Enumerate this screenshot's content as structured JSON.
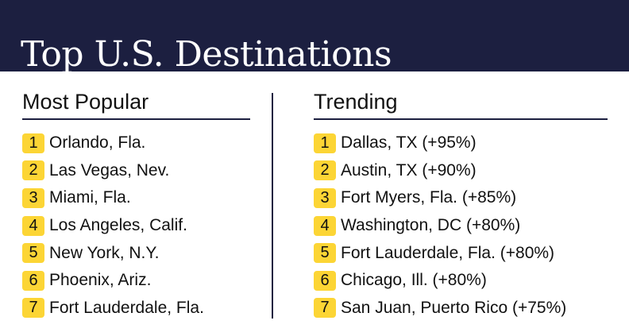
{
  "title": "Top U.S. Destinations",
  "popular": {
    "heading": "Most Popular",
    "items": [
      {
        "rank": "1",
        "name": "Orlando, Fla."
      },
      {
        "rank": "2",
        "name": "Las Vegas, Nev."
      },
      {
        "rank": "3",
        "name": "Miami, Fla."
      },
      {
        "rank": "4",
        "name": "Los Angeles, Calif."
      },
      {
        "rank": "5",
        "name": "New York, N.Y."
      },
      {
        "rank": "6",
        "name": "Phoenix, Ariz."
      },
      {
        "rank": "7",
        "name": "Fort Lauderdale, Fla."
      }
    ]
  },
  "trending": {
    "heading": "Trending",
    "items": [
      {
        "rank": "1",
        "name": "Dallas, TX (+95%)"
      },
      {
        "rank": "2",
        "name": "Austin, TX (+90%)"
      },
      {
        "rank": "3",
        "name": "Fort Myers, Fla. (+85%)"
      },
      {
        "rank": "4",
        "name": "Washington, DC (+80%)"
      },
      {
        "rank": "5",
        "name": "Fort Lauderdale, Fla. (+80%)"
      },
      {
        "rank": "6",
        "name": "Chicago, Ill. (+80%)"
      },
      {
        "rank": "7",
        "name": "San Juan, Puerto Rico (+75%)"
      }
    ]
  },
  "colors": {
    "header": "#1c1f40",
    "badge": "#fcd535"
  }
}
